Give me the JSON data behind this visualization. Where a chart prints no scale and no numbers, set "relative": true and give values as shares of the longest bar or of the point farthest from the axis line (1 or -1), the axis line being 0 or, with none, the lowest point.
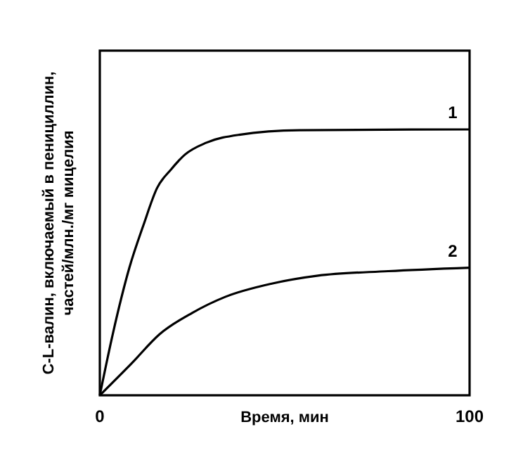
{
  "chart_data": {
    "type": "line",
    "relative": true,
    "xlabel": "Время, мин",
    "ylabel": "C-L-валин, включаемый в пенициллин,\nчастей/млн./мг мицелия",
    "xlim": [
      0,
      100
    ],
    "xticks": [
      0,
      100
    ],
    "marker": "none",
    "line_style": "solid",
    "series": [
      {
        "name": "1",
        "color": "#000000",
        "x": [
          0,
          3.5,
          8,
          11.8,
          15.5,
          19.3,
          23,
          28.8,
          37.7,
          54,
          100
        ],
        "values": [
          0,
          0.23,
          0.48,
          0.64,
          0.78,
          0.85,
          0.905,
          0.95,
          0.98,
          0.997,
          1
        ]
      },
      {
        "name": "2",
        "color": "#000000",
        "x": [
          0,
          8.6,
          16.2,
          25,
          33.9,
          46.5,
          59,
          78,
          100
        ],
        "values": [
          0,
          0.12,
          0.23,
          0.31,
          0.37,
          0.42,
          0.45,
          0.467,
          0.48
        ]
      }
    ]
  }
}
